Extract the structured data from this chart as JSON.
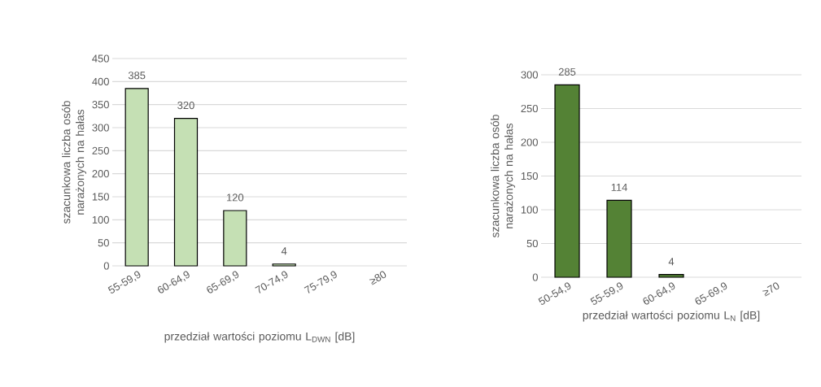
{
  "chart_data": [
    {
      "type": "bar",
      "categories": [
        "55-59,9",
        "60-64,9",
        "65-69,9",
        "70-74,9",
        "75-79,9",
        "≥80"
      ],
      "values": [
        385,
        320,
        120,
        4,
        null,
        null
      ],
      "value_labels": [
        "385",
        "320",
        "120",
        "4",
        null,
        null
      ],
      "color": "#c5e0b4",
      "ylim": [
        0,
        450
      ],
      "yticks": [
        0,
        50,
        100,
        150,
        200,
        250,
        300,
        350,
        400,
        450
      ],
      "grid": "y",
      "xlabel": "przedział wartości poziomu L$_{DWN}$ [dB]",
      "ylabel": "szacunkowa liczba osób narażonych na hałas"
    },
    {
      "type": "bar",
      "categories": [
        "50-54,9",
        "55-59,9",
        "60-64,9",
        "65-69,9",
        "≥70"
      ],
      "values": [
        285,
        114,
        4,
        null,
        null
      ],
      "value_labels": [
        "285",
        "114",
        "4",
        null,
        null
      ],
      "color": "#548235",
      "ylim": [
        0,
        300
      ],
      "yticks": [
        0,
        50,
        100,
        150,
        200,
        250,
        300
      ],
      "grid": "y",
      "xlabel": "przedział wartości poziomu L$_{N}$ [dB]",
      "ylabel": "szacunkowa liczba osób narażonych na hałas"
    }
  ]
}
